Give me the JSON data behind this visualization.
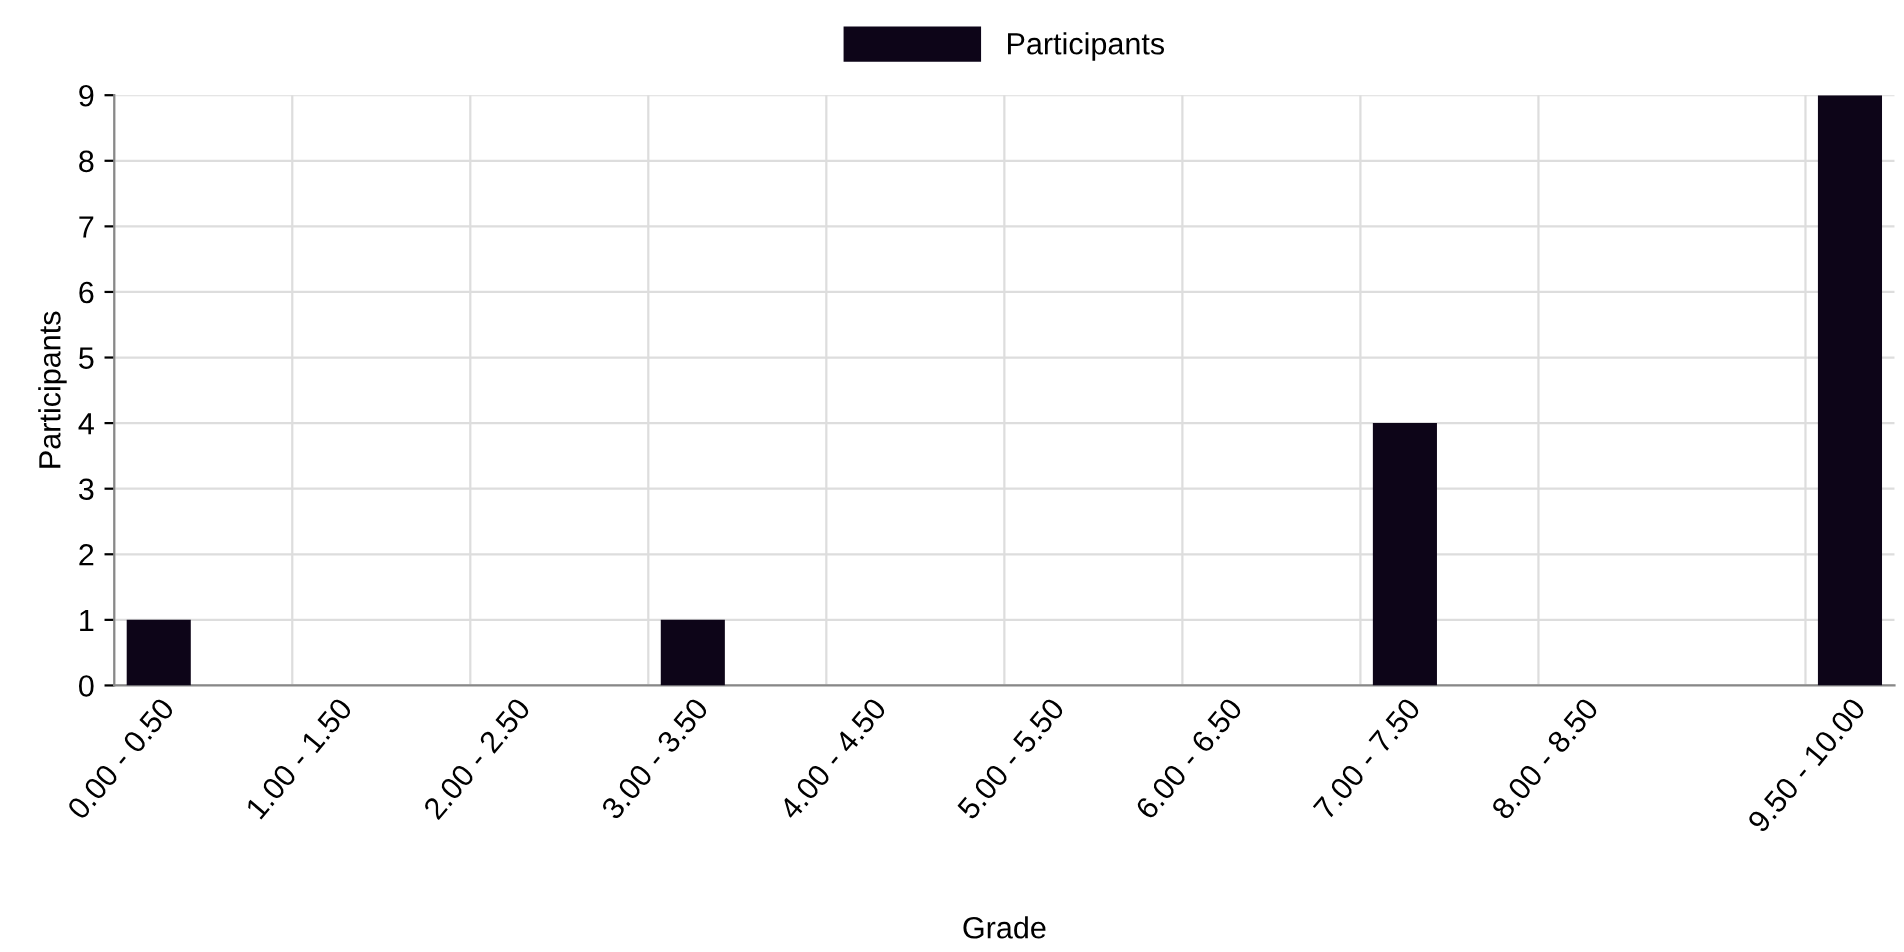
{
  "chart_data": {
    "type": "bar",
    "xlabel": "Grade",
    "ylabel": "Participants",
    "categories": [
      "0.00 - 0.50",
      null,
      "1.00 - 1.50",
      null,
      "2.00 - 2.50",
      null,
      "3.00 - 3.50",
      null,
      "4.00 - 4.50",
      null,
      "5.00 - 5.50",
      null,
      "6.00 - 6.50",
      null,
      "7.00 - 7.50",
      null,
      "8.00 - 8.50",
      null,
      null,
      "9.50 - 10.00"
    ],
    "series": [
      {
        "name": "Participants",
        "color": "#0d0518",
        "values": [
          1,
          0,
          0,
          0,
          0,
          0,
          1,
          0,
          0,
          0,
          0,
          0,
          0,
          0,
          4,
          0,
          0,
          0,
          0,
          9
        ]
      }
    ],
    "ylim": [
      0,
      9
    ],
    "yticks": [
      0,
      1,
      2,
      3,
      4,
      5,
      6,
      7,
      8,
      9
    ],
    "grid": true,
    "legend": "top"
  }
}
